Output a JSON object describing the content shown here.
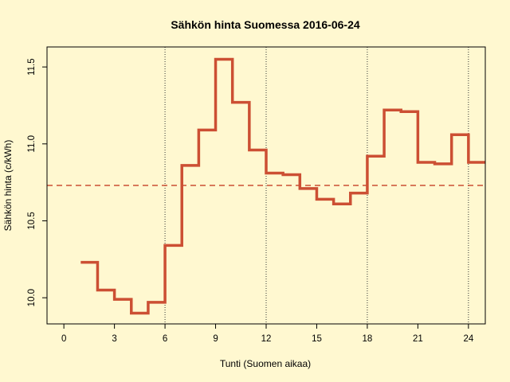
{
  "chart_data": {
    "type": "line",
    "title": "Sähkön hinta Suomessa 2016-06-24",
    "xlabel": "Tunti (Suomen aikaa)",
    "ylabel": "Sähkön hinta (c/kWh)",
    "xlim": [
      -1,
      25
    ],
    "ylim": [
      9.83,
      11.63
    ],
    "x_ticks": [
      0,
      3,
      6,
      9,
      12,
      15,
      18,
      21,
      24
    ],
    "y_ticks": [
      10.0,
      10.5,
      11.0,
      11.5
    ],
    "y_tick_labels": [
      "10.0",
      "10.5",
      "11.0",
      "11.5"
    ],
    "grid": false,
    "vertical_reference_lines": [
      6,
      12,
      18,
      24
    ],
    "step": "post",
    "x": [
      1,
      2,
      3,
      4,
      5,
      6,
      7,
      8,
      9,
      10,
      11,
      12,
      13,
      14,
      15,
      16,
      17,
      18,
      19,
      20,
      21,
      22,
      23,
      24,
      25
    ],
    "series": [
      {
        "values": [
          10.23,
          10.05,
          9.99,
          9.9,
          9.97,
          10.34,
          10.86,
          11.09,
          11.55,
          11.27,
          10.96,
          10.81,
          10.8,
          10.71,
          10.64,
          10.61,
          10.68,
          10.92,
          11.22,
          11.21,
          10.88,
          10.87,
          11.06,
          10.88,
          10.88
        ],
        "color": "#cc4f33"
      }
    ],
    "mean_line": {
      "value": 10.73,
      "color": "#cc4f33",
      "style": "dashed"
    },
    "colors": {
      "background": "#fff8d0",
      "axis": "#000000",
      "reference": "#333333"
    }
  }
}
